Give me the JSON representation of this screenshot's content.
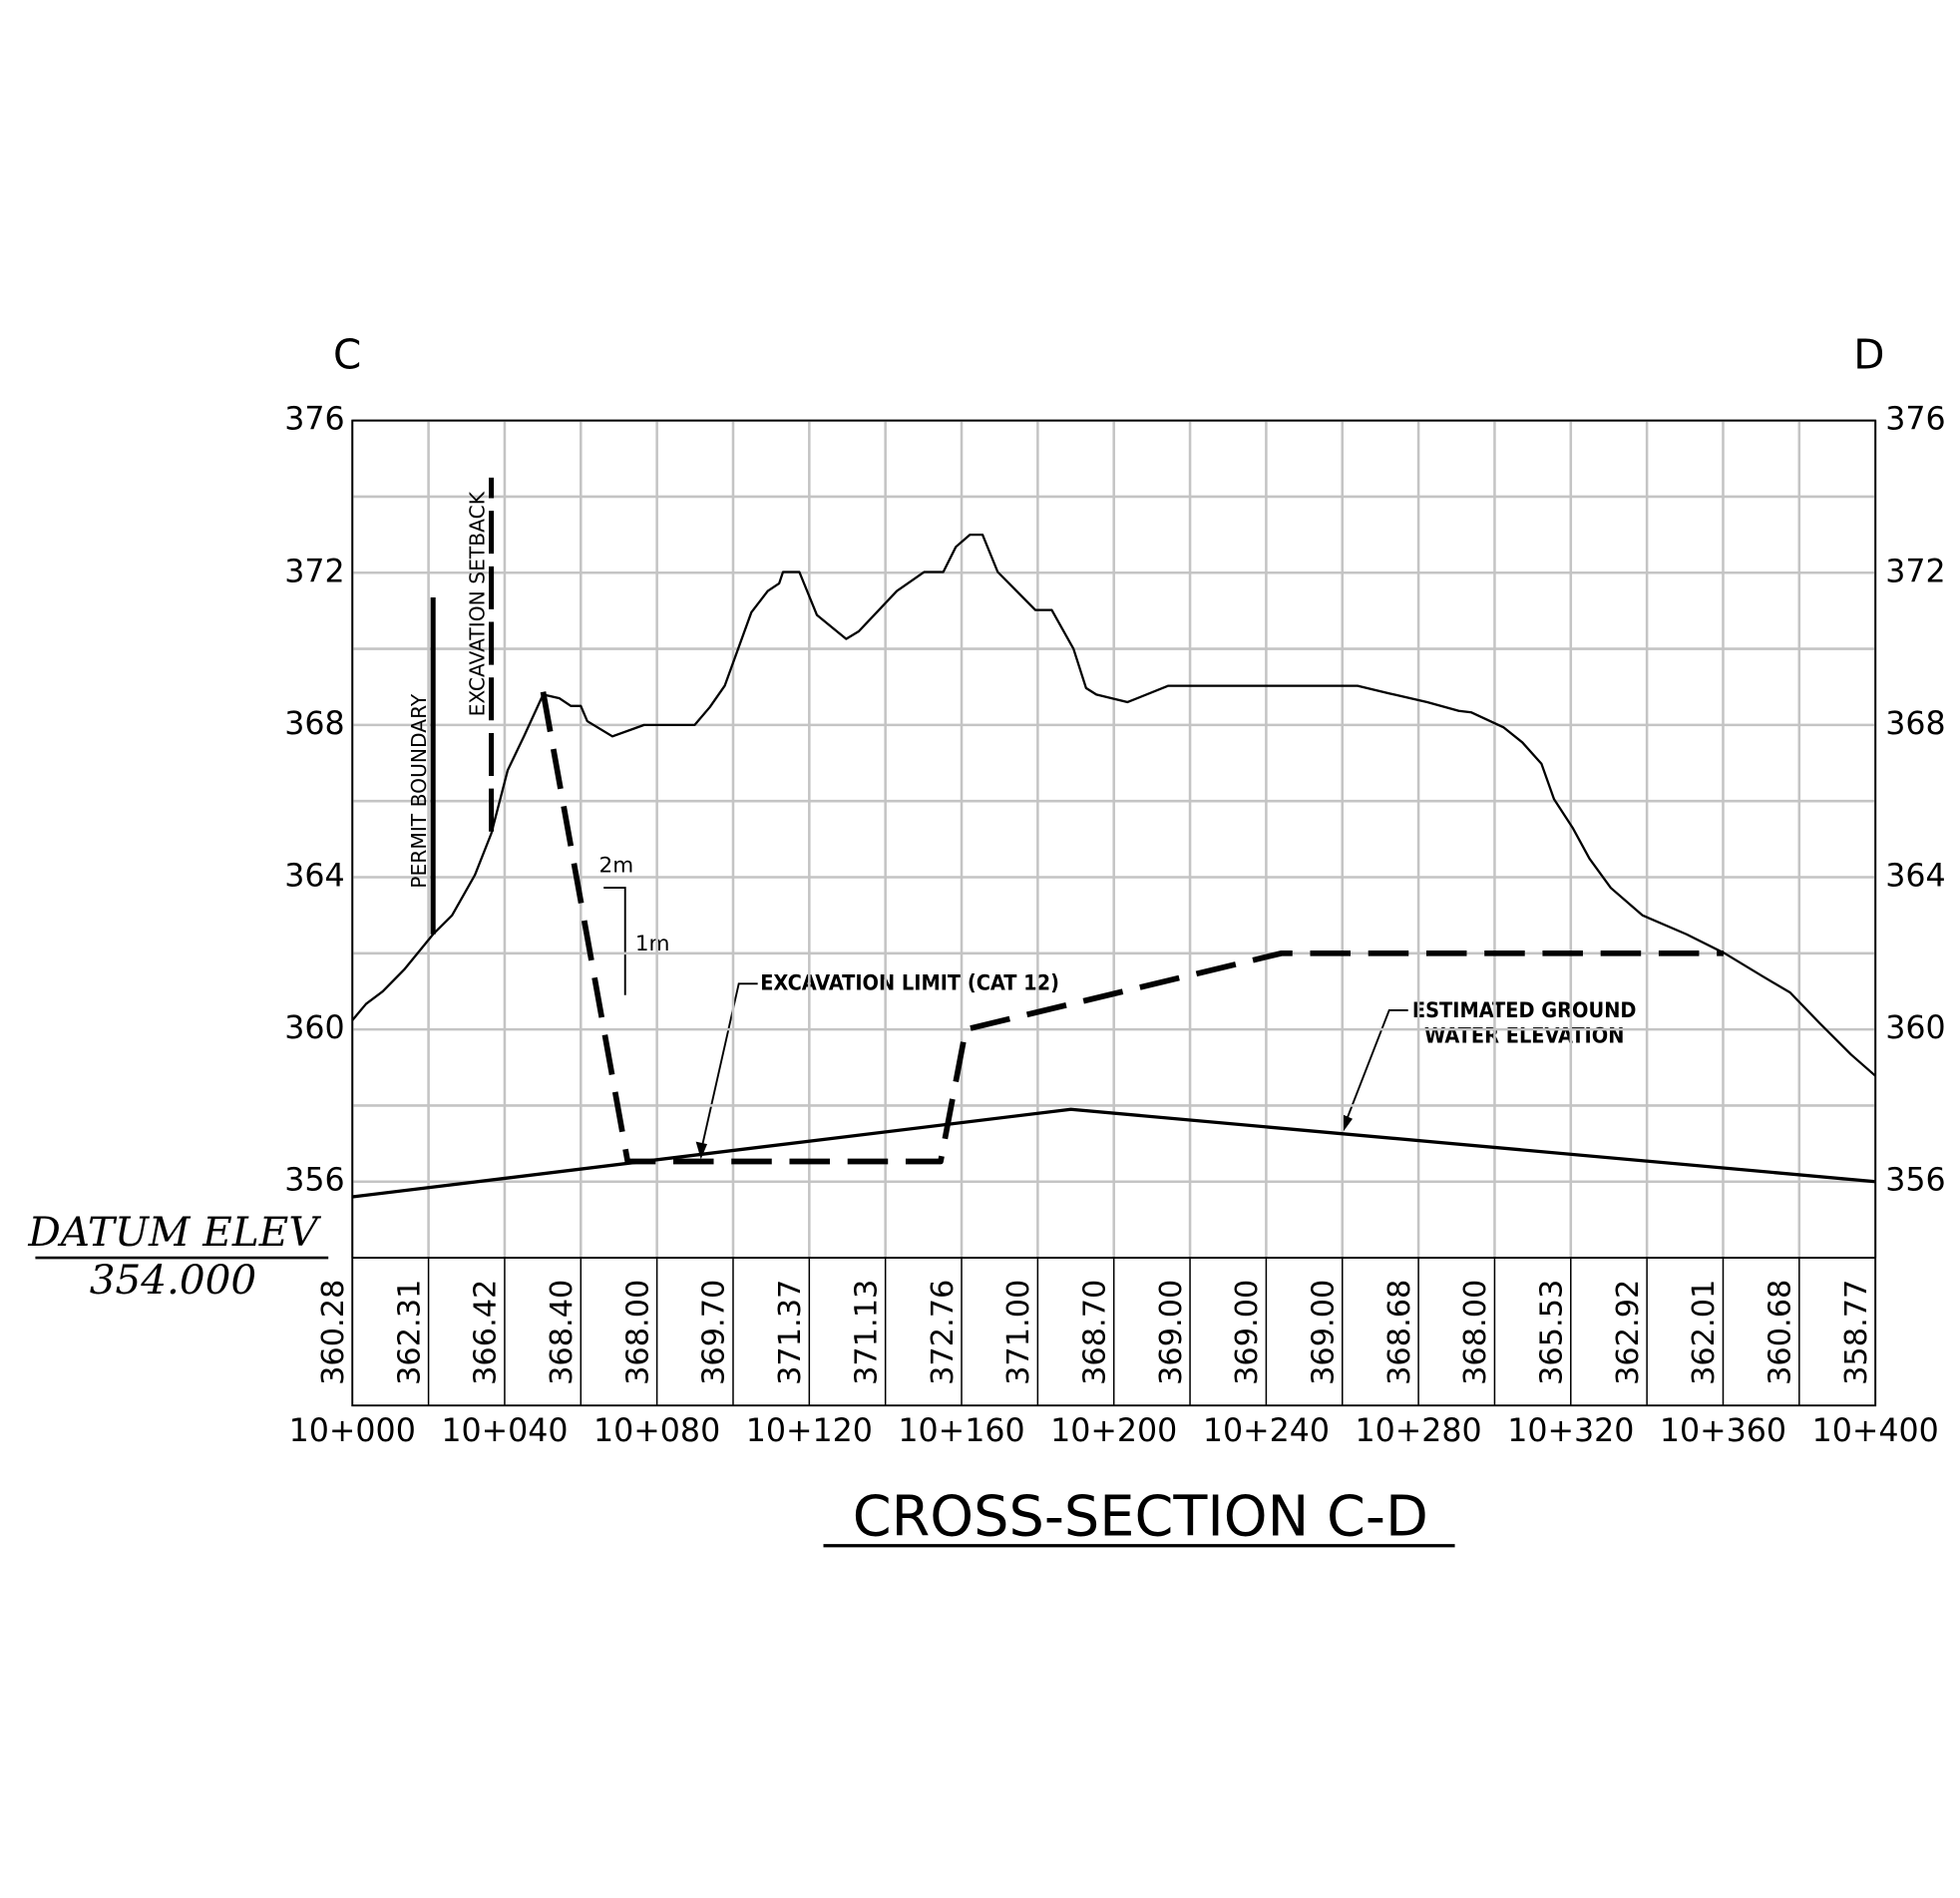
{
  "chart_data": {
    "type": "line",
    "title": "CROSS-SECTION C-D",
    "left_end": "C",
    "right_end": "D",
    "datum_label": "DATUM ELEV",
    "datum_value": "354.000",
    "xlim": [
      0,
      400
    ],
    "ylim": [
      354,
      376
    ],
    "xticks": [
      {
        "value": 0,
        "label": "10+000"
      },
      {
        "value": 40,
        "label": "10+040"
      },
      {
        "value": 80,
        "label": "10+080"
      },
      {
        "value": 120,
        "label": "10+120"
      },
      {
        "value": 160,
        "label": "10+160"
      },
      {
        "value": 200,
        "label": "10+200"
      },
      {
        "value": 240,
        "label": "10+240"
      },
      {
        "value": 280,
        "label": "10+280"
      },
      {
        "value": 320,
        "label": "10+320"
      },
      {
        "value": 360,
        "label": "10+360"
      },
      {
        "value": 400,
        "label": "10+400"
      }
    ],
    "yticks": [
      356,
      360,
      364,
      368,
      372,
      376
    ],
    "minor_yticks": [
      358,
      362,
      366,
      370,
      374
    ],
    "grid": true,
    "table_x": [
      0,
      20,
      40,
      60,
      80,
      100,
      120,
      140,
      160,
      180,
      200,
      220,
      240,
      260,
      280,
      300,
      320,
      340,
      360,
      380,
      400
    ],
    "elevation_labels": [
      "360.28",
      "362.31",
      "366.42",
      "368.40",
      "368.00",
      "369.70",
      "371.37",
      "371.13",
      "372.76",
      "371.00",
      "368.70",
      "369.00",
      "369.00",
      "369.00",
      "368.68",
      "368.00",
      "365.53",
      "362.92",
      "362.01",
      "360.68",
      "358.77"
    ],
    "series": [
      {
        "color": "#000000",
        "dashed": false,
        "x": [
          0,
          3.6,
          8,
          13.6,
          21.2,
          26.2,
          32.2,
          36.5,
          40.8,
          45.1,
          50.1,
          54.4,
          57.4,
          60,
          61.7,
          68.3,
          76.6,
          89.9,
          93.9,
          97.8,
          104.8,
          109.1,
          112.1,
          113.1,
          117.4,
          122,
          129.7,
          133,
          138,
          143,
          150.2,
          155.2,
          158.5,
          162.2,
          165.5,
          169.5,
          179.4,
          183.7,
          189.4,
          192.7,
          195.4,
          203.6,
          214.3,
          264,
          272.3,
          282.3,
          290.6,
          293.9,
          302.3,
          307.3,
          312.3,
          315.6,
          320.6,
          324.9,
          330.5,
          338.8,
          350.4,
          360.4,
          370.3,
          377.6,
          385.3,
          393.6,
          400
        ],
        "values": [
          360.24,
          360.67,
          361.0,
          361.57,
          362.5,
          363.0,
          364.06,
          365.15,
          366.81,
          367.71,
          368.8,
          368.7,
          368.5,
          368.5,
          368.1,
          367.7,
          368.0,
          368.0,
          368.47,
          369.03,
          370.96,
          371.52,
          371.72,
          372.02,
          372.02,
          370.89,
          370.26,
          370.46,
          370.99,
          371.52,
          372.02,
          372.02,
          372.68,
          373.0,
          373.0,
          372.02,
          371.02,
          371.02,
          370.0,
          368.97,
          368.8,
          368.6,
          369.03,
          369.03,
          368.83,
          368.6,
          368.37,
          368.33,
          367.94,
          367.54,
          366.98,
          366.05,
          365.28,
          364.49,
          363.72,
          363.0,
          362.5,
          362.0,
          361.4,
          360.97,
          360.17,
          359.34,
          358.78
        ]
      },
      {
        "color": "#000000",
        "dashed": false,
        "x": [
          0,
          188.7,
          400
        ],
        "values": [
          355.6,
          357.9,
          356.0
        ]
      },
      {
        "color": "#000000",
        "dashed": true,
        "x": [
          50.1,
          72.3,
          154.5,
          161.1,
          244,
          360.1
        ],
        "values": [
          368.87,
          356.53,
          356.53,
          360.0,
          362.0,
          362.0
        ]
      }
    ],
    "markers": [
      {
        "label": "PERMIT BOUNDARY",
        "x": 21.2,
        "ylim": [
          362.5,
          371.35
        ],
        "dashed": false
      },
      {
        "label": "EXCAVATION SETBACK",
        "x": 36.5,
        "ylim": [
          365.2,
          374.5
        ],
        "dashed": true
      }
    ],
    "slope": {
      "run": "2m",
      "rise": "1m"
    },
    "annotations": [
      {
        "lines": [
          "EXCAVATION LIMIT (CAT 12)"
        ]
      },
      {
        "lines": [
          "ESTIMATED GROUND",
          "WATER ELEVATION"
        ]
      }
    ]
  }
}
